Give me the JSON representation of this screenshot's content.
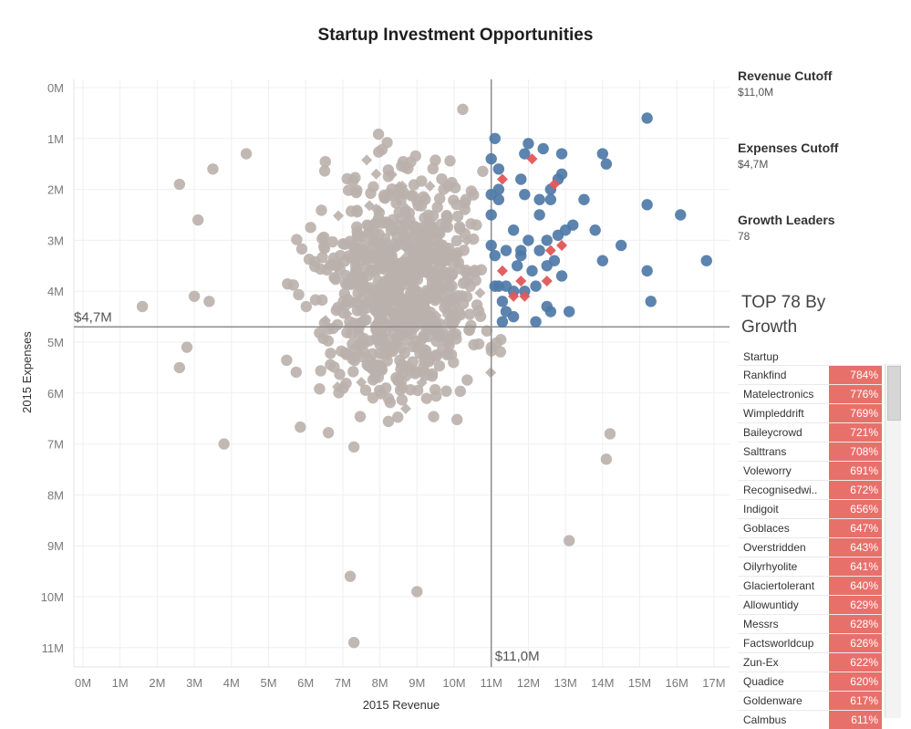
{
  "title": "Startup Investment Opportunities",
  "side": {
    "revenue_cutoff_label": "Revenue Cutoff",
    "revenue_cutoff_value": "$11,0M",
    "expenses_cutoff_label": "Expenses Cutoff",
    "expenses_cutoff_value": "$4,7M",
    "growth_leaders_label": "Growth Leaders",
    "growth_leaders_value": "78"
  },
  "top_list": {
    "title_line1": "TOP 78 By",
    "title_line2": "Growth",
    "column_header": "Startup",
    "rows": [
      {
        "name": "Rankfind",
        "growth": "784%"
      },
      {
        "name": "Matelectronics",
        "growth": "776%"
      },
      {
        "name": "Wimpleddrift",
        "growth": "769%"
      },
      {
        "name": "Baileycrowd",
        "growth": "721%"
      },
      {
        "name": "Salttrans",
        "growth": "708%"
      },
      {
        "name": "Voleworry",
        "growth": "691%"
      },
      {
        "name": "Recognisedwi..",
        "growth": "672%"
      },
      {
        "name": "Indigoit",
        "growth": "656%"
      },
      {
        "name": "Goblaces",
        "growth": "647%"
      },
      {
        "name": "Overstridden",
        "growth": "643%"
      },
      {
        "name": "Oilyrhyolite",
        "growth": "641%"
      },
      {
        "name": "Glaciertolerant",
        "growth": "640%"
      },
      {
        "name": "Allowuntidy",
        "growth": "629%"
      },
      {
        "name": "Messrs",
        "growth": "628%"
      },
      {
        "name": "Factsworldcup",
        "growth": "626%"
      },
      {
        "name": "Zun-Ex",
        "growth": "622%"
      },
      {
        "name": "Quadice",
        "growth": "620%"
      },
      {
        "name": "Goldenware",
        "growth": "617%"
      },
      {
        "name": "Calmbus",
        "growth": "611%"
      }
    ]
  },
  "chart_data": {
    "type": "scatter",
    "title": "Startup Investment Opportunities",
    "xlabel": "2015 Revenue",
    "ylabel": "2015 Expenses",
    "xlim": [
      0,
      17.8
    ],
    "ylim": [
      0,
      11.4
    ],
    "y_reversed": true,
    "x_ticks": [
      "0M",
      "1M",
      "2M",
      "3M",
      "4M",
      "5M",
      "6M",
      "7M",
      "8M",
      "9M",
      "10M",
      "11M",
      "12M",
      "13M",
      "14M",
      "15M",
      "16M",
      "17M"
    ],
    "y_ticks": [
      "0M",
      "1M",
      "2M",
      "3M",
      "4M",
      "5M",
      "6M",
      "7M",
      "8M",
      "9M",
      "10M",
      "11M"
    ],
    "reference_lines": {
      "x_value": 11.0,
      "x_label": "$11,0M",
      "y_value": 4.7,
      "y_label": "$4,7M"
    },
    "colors": {
      "other": "#bab0ac",
      "qualified": "#4e79a7",
      "growth_leader": "#e15759",
      "reference_line": "#8c8c8c"
    },
    "series": [
      {
        "group": "qualified",
        "shape": "circle",
        "points": [
          [
            15.2,
            0.6
          ],
          [
            14.0,
            1.3
          ],
          [
            14.1,
            1.5
          ],
          [
            12.0,
            1.1
          ],
          [
            12.4,
            1.2
          ],
          [
            12.9,
            1.3
          ],
          [
            11.9,
            1.3
          ],
          [
            12.9,
            1.7
          ],
          [
            12.8,
            1.8
          ],
          [
            12.6,
            2.0
          ],
          [
            13.5,
            2.2
          ],
          [
            11.9,
            2.1
          ],
          [
            12.3,
            2.2
          ],
          [
            15.2,
            2.3
          ],
          [
            16.1,
            2.5
          ],
          [
            12.3,
            2.5
          ],
          [
            13.0,
            2.8
          ],
          [
            13.2,
            2.7
          ],
          [
            12.8,
            2.9
          ],
          [
            13.8,
            2.8
          ],
          [
            11.6,
            2.8
          ],
          [
            12.0,
            3.0
          ],
          [
            12.5,
            3.0
          ],
          [
            14.0,
            3.4
          ],
          [
            14.5,
            3.1
          ],
          [
            15.2,
            3.6
          ],
          [
            16.8,
            3.4
          ],
          [
            15.3,
            4.2
          ],
          [
            12.5,
            3.5
          ],
          [
            12.9,
            3.7
          ],
          [
            12.2,
            3.9
          ],
          [
            13.1,
            4.4
          ],
          [
            12.6,
            4.4
          ],
          [
            11.6,
            4.5
          ],
          [
            12.2,
            4.6
          ],
          [
            11.4,
            4.4
          ],
          [
            11.2,
            3.9
          ],
          [
            11.8,
            3.3
          ],
          [
            11.4,
            3.2
          ],
          [
            11.7,
            3.5
          ],
          [
            12.1,
            3.6
          ],
          [
            11.9,
            4.0
          ],
          [
            11.3,
            4.6
          ],
          [
            11.3,
            4.2
          ],
          [
            11.0,
            3.1
          ],
          [
            11.1,
            3.9
          ],
          [
            11.6,
            4.0
          ],
          [
            12.5,
            4.3
          ],
          [
            11.1,
            1.0
          ],
          [
            11.0,
            1.4
          ],
          [
            11.2,
            1.6
          ],
          [
            11.2,
            2.0
          ],
          [
            11.0,
            2.5
          ],
          [
            11.1,
            3.3
          ],
          [
            11.4,
            3.9
          ],
          [
            11.0,
            2.1
          ],
          [
            11.2,
            2.2
          ],
          [
            11.8,
            1.8
          ],
          [
            12.6,
            2.2
          ],
          [
            11.8,
            3.2
          ],
          [
            12.3,
            3.2
          ],
          [
            12.7,
            3.4
          ]
        ]
      },
      {
        "group": "growth_leader",
        "shape": "diamond",
        "points": [
          [
            12.1,
            1.4
          ],
          [
            12.7,
            1.9
          ],
          [
            12.9,
            3.1
          ],
          [
            12.6,
            3.2
          ],
          [
            12.5,
            3.8
          ],
          [
            11.6,
            4.1
          ],
          [
            11.3,
            3.6
          ],
          [
            11.8,
            3.8
          ],
          [
            11.3,
            1.8
          ],
          [
            11.9,
            4.1
          ]
        ]
      }
    ],
    "other_points_note": "approx. 800 grey circles/diamonds spread over x 1.6–14.2M, y 0–10.9M"
  }
}
